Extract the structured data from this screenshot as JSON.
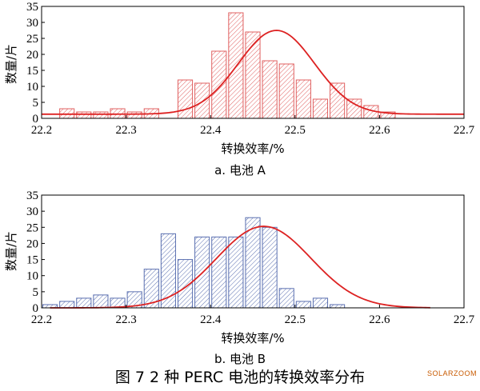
{
  "figure_caption": "图 7 2 种 PERC 电池的转换效率分布",
  "watermark": "SOLARZOOM",
  "chart_data": [
    {
      "type": "bar",
      "caption": "a. 电池 A",
      "xlabel": "转换效率/%",
      "ylabel": "数量/片",
      "xlim": [
        22.2,
        22.7
      ],
      "ylim": [
        0,
        35
      ],
      "xticks": [
        "22.2",
        "22.3",
        "22.4",
        "22.5",
        "22.6",
        "22.7"
      ],
      "yticks": [
        "0",
        "5",
        "10",
        "15",
        "20",
        "25",
        "30",
        "35"
      ],
      "bar_color": "#e06060",
      "curve_color": "#dd2222",
      "bin_width": 0.02,
      "bin_centers": [
        22.23,
        22.25,
        22.27,
        22.29,
        22.31,
        22.33,
        22.35,
        22.37,
        22.39,
        22.41,
        22.43,
        22.45,
        22.47,
        22.49,
        22.51,
        22.53,
        22.55,
        22.57,
        22.59,
        22.61,
        22.63,
        22.65,
        22.67,
        22.69
      ],
      "values": [
        3,
        2,
        2,
        3,
        2,
        3,
        0,
        12,
        11,
        21,
        33,
        27,
        18,
        17,
        12,
        6,
        11,
        6,
        4,
        2,
        0,
        0,
        0,
        0
      ],
      "fit": {
        "mean": 22.478,
        "sd": 0.045,
        "peak": 27.5,
        "x_range": [
          22.2,
          22.7
        ],
        "baseline": 1.3
      }
    },
    {
      "type": "bar",
      "caption": "b. 电池 B",
      "xlabel": "转换效率/%",
      "ylabel": "数量/片",
      "xlim": [
        22.2,
        22.7
      ],
      "ylim": [
        0,
        35
      ],
      "xticks": [
        "22.2",
        "22.3",
        "22.4",
        "22.5",
        "22.6",
        "22.7"
      ],
      "yticks": [
        "0",
        "5",
        "10",
        "15",
        "20",
        "25",
        "30",
        "35"
      ],
      "bar_color": "#5a6fb0",
      "curve_color": "#dd2222",
      "bin_width": 0.02,
      "bin_centers": [
        22.21,
        22.23,
        22.25,
        22.27,
        22.29,
        22.31,
        22.33,
        22.35,
        22.37,
        22.39,
        22.41,
        22.43,
        22.45,
        22.47,
        22.49,
        22.51,
        22.53,
        22.55,
        22.57,
        22.59,
        22.61,
        22.63,
        22.65
      ],
      "values": [
        1,
        2,
        3,
        4,
        3,
        5,
        12,
        23,
        15,
        22,
        22,
        22,
        28,
        25,
        6,
        2,
        3,
        1,
        0,
        0,
        0,
        0,
        0
      ],
      "fit": {
        "mean": 22.463,
        "sd": 0.056,
        "peak": 25.3,
        "x_range": [
          22.21,
          22.66
        ],
        "baseline": 0
      }
    }
  ]
}
